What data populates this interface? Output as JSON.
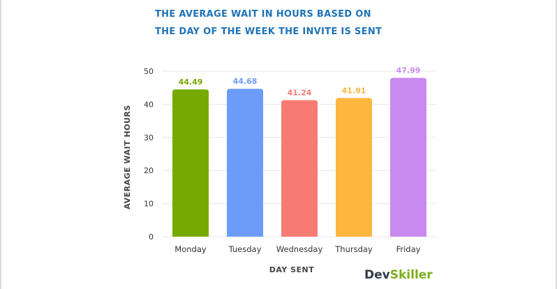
{
  "chart_data": {
    "type": "bar",
    "title_lines": [
      "THE AVERAGE WAIT IN HOURS BASED ON",
      "THE DAY OF THE WEEK THE INVITE IS SENT"
    ],
    "xlabel": "DAY SENT",
    "ylabel": "AVERAGE WAIT HOURS",
    "categories": [
      "Monday",
      "Tuesday",
      "Wednesday",
      "Thursday",
      "Friday"
    ],
    "values": [
      44.49,
      44.68,
      41.24,
      41.91,
      47.99
    ],
    "value_labels": [
      "44.49",
      "44.68",
      "41.24",
      "41.91",
      "47.99"
    ],
    "colors": [
      "#76aa00",
      "#6c9bfa",
      "#f87b73",
      "#fdb63f",
      "#c98af0"
    ],
    "ylim": [
      0,
      50
    ],
    "yticks": [
      0,
      10,
      20,
      30,
      40,
      50
    ],
    "grid": true,
    "legend": "none"
  },
  "brand": {
    "part1": "Dev",
    "part2": "Skiller"
  }
}
